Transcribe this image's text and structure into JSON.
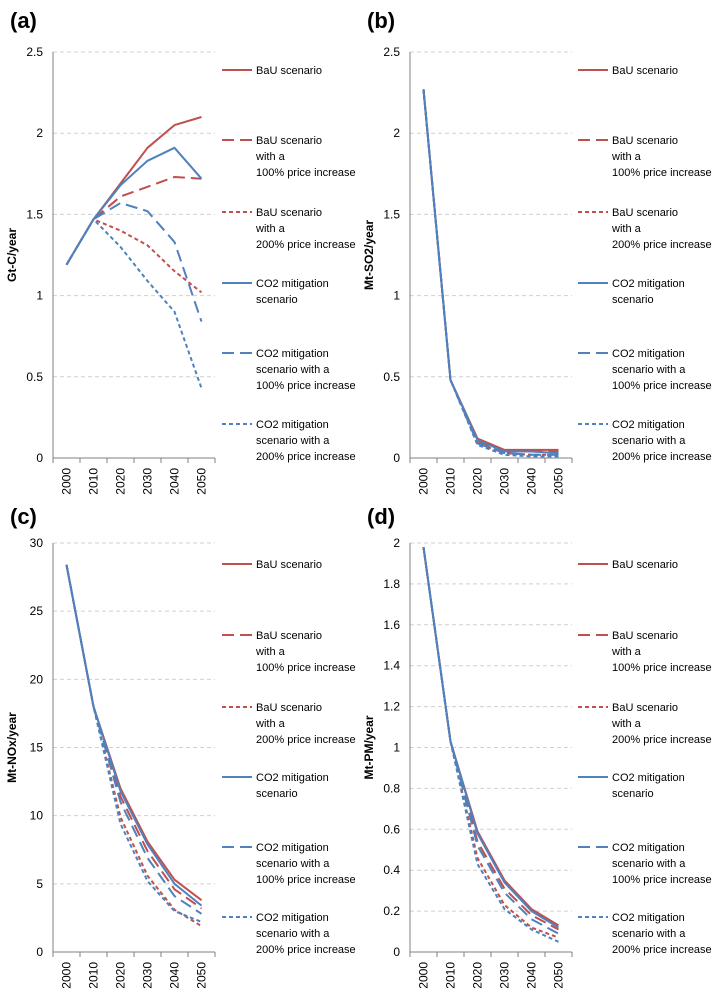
{
  "styles": {
    "bau": {
      "color": "#c0504d",
      "dash": "solid"
    },
    "bau100": {
      "color": "#c0504d",
      "dash": "long"
    },
    "bau200": {
      "color": "#c0504d",
      "dash": "short"
    },
    "mit": {
      "color": "#4f81bd",
      "dash": "solid"
    },
    "mit100": {
      "color": "#4f81bd",
      "dash": "long"
    },
    "mit200": {
      "color": "#4f81bd",
      "dash": "short"
    }
  },
  "legend": [
    {
      "key": "bau",
      "lines": [
        "BaU scenario"
      ]
    },
    {
      "key": "bau100",
      "lines": [
        "BaU scenario",
        "with a",
        "100% price increase"
      ]
    },
    {
      "key": "bau200",
      "lines": [
        "BaU scenario",
        "with a",
        "200% price increase"
      ]
    },
    {
      "key": "mit",
      "lines": [
        "CO2 mitigation",
        "scenario"
      ]
    },
    {
      "key": "mit100",
      "lines": [
        "CO2 mitigation",
        "scenario with a",
        "100% price increase"
      ]
    },
    {
      "key": "mit200",
      "lines": [
        "CO2 mitigation",
        "scenario with a",
        "200% price increase"
      ]
    }
  ],
  "chart_data": [
    {
      "panel": "(a)",
      "type": "line",
      "ylabel": "Gt-C/year",
      "categories": [
        "2000",
        "2010",
        "2020",
        "2030",
        "2040",
        "2050"
      ],
      "ylim": [
        0,
        2.5
      ],
      "yticks": [
        "0",
        "0.5",
        "1",
        "1.5",
        "2",
        "2.5"
      ],
      "series": [
        {
          "key": "bau",
          "name": "BaU scenario",
          "values": [
            1.19,
            1.47,
            1.69,
            1.91,
            2.05,
            2.1
          ]
        },
        {
          "key": "bau100",
          "name": "BaU scenario with a 100% price increase",
          "values": [
            1.19,
            1.47,
            1.61,
            1.67,
            1.73,
            1.72
          ]
        },
        {
          "key": "bau200",
          "name": "BaU scenario with a 200% price increase",
          "values": [
            1.19,
            1.47,
            1.4,
            1.31,
            1.15,
            1.02
          ]
        },
        {
          "key": "mit",
          "name": "CO2 mitigation scenario",
          "values": [
            1.19,
            1.47,
            1.68,
            1.83,
            1.91,
            1.72
          ]
        },
        {
          "key": "mit100",
          "name": "CO2 mitigation scenario with a 100% price increase",
          "values": [
            1.19,
            1.47,
            1.57,
            1.52,
            1.33,
            0.84
          ]
        },
        {
          "key": "mit200",
          "name": "CO2 mitigation scenario with a 200% price increase",
          "values": [
            1.19,
            1.47,
            1.3,
            1.09,
            0.9,
            0.43
          ]
        }
      ]
    },
    {
      "panel": "(b)",
      "type": "line",
      "ylabel": "Mt-SO2/year",
      "categories": [
        "2000",
        "2010",
        "2020",
        "2030",
        "2040",
        "2050"
      ],
      "ylim": [
        0,
        2.5
      ],
      "yticks": [
        "0",
        "0.5",
        "1",
        "1.5",
        "2",
        "2.5"
      ],
      "series": [
        {
          "key": "bau",
          "name": "BaU scenario",
          "values": [
            2.27,
            0.48,
            0.12,
            0.05,
            0.05,
            0.05
          ]
        },
        {
          "key": "bau100",
          "name": "BaU scenario with a 100% price increase",
          "values": [
            2.27,
            0.48,
            0.1,
            0.04,
            0.04,
            0.04
          ]
        },
        {
          "key": "bau200",
          "name": "BaU scenario with a 200% price increase",
          "values": [
            2.27,
            0.48,
            0.09,
            0.03,
            0.02,
            0.02
          ]
        },
        {
          "key": "mit",
          "name": "CO2 mitigation scenario",
          "values": [
            2.27,
            0.48,
            0.11,
            0.04,
            0.04,
            0.03
          ]
        },
        {
          "key": "mit100",
          "name": "CO2 mitigation scenario with a 100% price increase",
          "values": [
            2.27,
            0.48,
            0.09,
            0.03,
            0.02,
            0.02
          ]
        },
        {
          "key": "mit200",
          "name": "CO2 mitigation scenario with a 200% price increase",
          "values": [
            2.27,
            0.48,
            0.08,
            0.02,
            0.01,
            0.01
          ]
        }
      ]
    },
    {
      "panel": "(c)",
      "type": "line",
      "ylabel": "Mt-NOx/year",
      "categories": [
        "2000",
        "2010",
        "2020",
        "2030",
        "2040",
        "2050"
      ],
      "ylim": [
        0,
        30
      ],
      "yticks": [
        "0",
        "5",
        "10",
        "15",
        "20",
        "25",
        "30"
      ],
      "series": [
        {
          "key": "bau",
          "name": "BaU scenario",
          "values": [
            28.4,
            18.0,
            12.0,
            8.1,
            5.3,
            3.8
          ]
        },
        {
          "key": "bau100",
          "name": "BaU scenario with a 100% price increase",
          "values": [
            28.4,
            18.0,
            11.4,
            7.4,
            4.6,
            3.2
          ]
        },
        {
          "key": "bau200",
          "name": "BaU scenario with a 200% price increase",
          "values": [
            28.4,
            18.0,
            9.9,
            5.6,
            3.1,
            1.9
          ]
        },
        {
          "key": "mit",
          "name": "CO2 mitigation scenario",
          "values": [
            28.4,
            18.0,
            11.8,
            7.9,
            5.0,
            3.4
          ]
        },
        {
          "key": "mit100",
          "name": "CO2 mitigation scenario with a 100% price increase",
          "values": [
            28.4,
            18.0,
            11.0,
            6.9,
            4.1,
            2.8
          ]
        },
        {
          "key": "mit200",
          "name": "CO2 mitigation scenario with a 200% price increase",
          "values": [
            28.4,
            18.0,
            9.4,
            5.2,
            3.0,
            2.2
          ]
        }
      ]
    },
    {
      "panel": "(d)",
      "type": "line",
      "ylabel": "Mt-PM/year",
      "categories": [
        "2000",
        "2010",
        "2020",
        "2030",
        "2040",
        "2050"
      ],
      "ylim": [
        0,
        2
      ],
      "yticks": [
        "0",
        "0.2",
        "0.4",
        "0.6",
        "0.8",
        "1",
        "1.2",
        "1.4",
        "1.6",
        "1.8",
        "2"
      ],
      "series": [
        {
          "key": "bau",
          "name": "BaU scenario",
          "values": [
            1.98,
            1.03,
            0.59,
            0.35,
            0.21,
            0.13
          ]
        },
        {
          "key": "bau100",
          "name": "BaU scenario with a 100% price increase",
          "values": [
            1.98,
            1.03,
            0.54,
            0.31,
            0.18,
            0.11
          ]
        },
        {
          "key": "bau200",
          "name": "BaU scenario with a 200% price increase",
          "values": [
            1.98,
            1.03,
            0.46,
            0.23,
            0.12,
            0.07
          ]
        },
        {
          "key": "mit",
          "name": "CO2 mitigation scenario",
          "values": [
            1.98,
            1.03,
            0.58,
            0.34,
            0.2,
            0.12
          ]
        },
        {
          "key": "mit100",
          "name": "CO2 mitigation scenario with a 100% price increase",
          "values": [
            1.98,
            1.03,
            0.52,
            0.29,
            0.16,
            0.09
          ]
        },
        {
          "key": "mit200",
          "name": "CO2 mitigation scenario with a 200% price increase",
          "values": [
            1.98,
            1.03,
            0.43,
            0.21,
            0.11,
            0.05
          ]
        }
      ]
    }
  ]
}
